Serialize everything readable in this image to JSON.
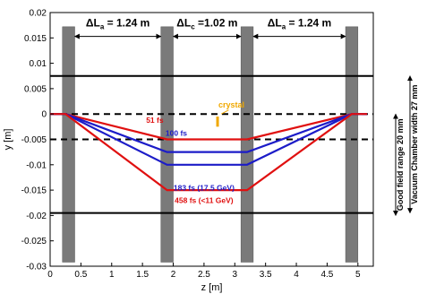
{
  "chart_data": {
    "type": "line",
    "xlabel": "z [m]",
    "ylabel": "y [m]",
    "xlim": [
      0,
      5.25
    ],
    "ylim": [
      -0.03,
      0.02
    ],
    "xticks": [
      "0",
      "0.5",
      "1",
      "1.5",
      "2",
      "2.5",
      "3",
      "3.5",
      "4",
      "4.5",
      "5"
    ],
    "yticks": [
      "0.02",
      "0.015",
      "0.01",
      "0.005",
      "0",
      "-0.005",
      "-0.01",
      "-0.015",
      "-0.02",
      "-0.025",
      "-0.03"
    ],
    "grid": false,
    "series": [
      {
        "label": "51 fs",
        "color": "#e01010",
        "x": [
          0,
          0.25,
          1.9,
          3.2,
          4.9,
          5.15
        ],
        "y": [
          0,
          0,
          -0.005,
          -0.005,
          0,
          0
        ]
      },
      {
        "label": "100 fs",
        "color": "#1c1cc8",
        "x": [
          0,
          0.25,
          1.9,
          3.2,
          4.9,
          5.15
        ],
        "y": [
          0,
          0,
          -0.0075,
          -0.0075,
          0,
          0
        ]
      },
      {
        "label": "183 fs (17.5 GeV)",
        "color": "#1c1cc8",
        "x": [
          0,
          0.25,
          1.9,
          3.2,
          4.9,
          5.15
        ],
        "y": [
          0,
          0,
          -0.01,
          -0.01,
          0,
          0
        ]
      },
      {
        "label": "458 fs (<11 GeV)",
        "color": "#e01010",
        "x": [
          0,
          0.25,
          1.9,
          3.2,
          4.9,
          5.15
        ],
        "y": [
          0,
          0,
          -0.015,
          -0.015,
          0,
          0
        ]
      }
    ],
    "magnets_z": [
      0.3,
      1.9,
      3.2,
      4.9
    ],
    "magnet_color": "#7a7a7a",
    "solid_lines_y": [
      0.0075,
      -0.0195
    ],
    "dashed_lines_y": [
      0,
      -0.005
    ],
    "dimensions": [
      {
        "text": "ΔL",
        "sub": "a",
        "rest": " = 1.24 m",
        "x1": 0.3,
        "x2": 1.9
      },
      {
        "text": "ΔL",
        "sub": "c",
        "rest": " =1.02 m",
        "x1": 1.9,
        "x2": 3.2
      },
      {
        "text": "ΔL",
        "sub": "a",
        "rest": " = 1.24 m",
        "x1": 3.2,
        "x2": 4.9
      }
    ],
    "crystal": {
      "label": "crystal",
      "color": "#f0a800",
      "x": 2.72,
      "y_top": -0.0005,
      "y_bottom": -0.0025
    },
    "side_labels": [
      {
        "text": "Good field range 20 mm",
        "y_top": 0.0,
        "y_bottom": -0.02
      },
      {
        "text": "Vacuum Chamber width 27 mm",
        "y_top": 0.0075,
        "y_bottom": -0.0195
      }
    ]
  }
}
